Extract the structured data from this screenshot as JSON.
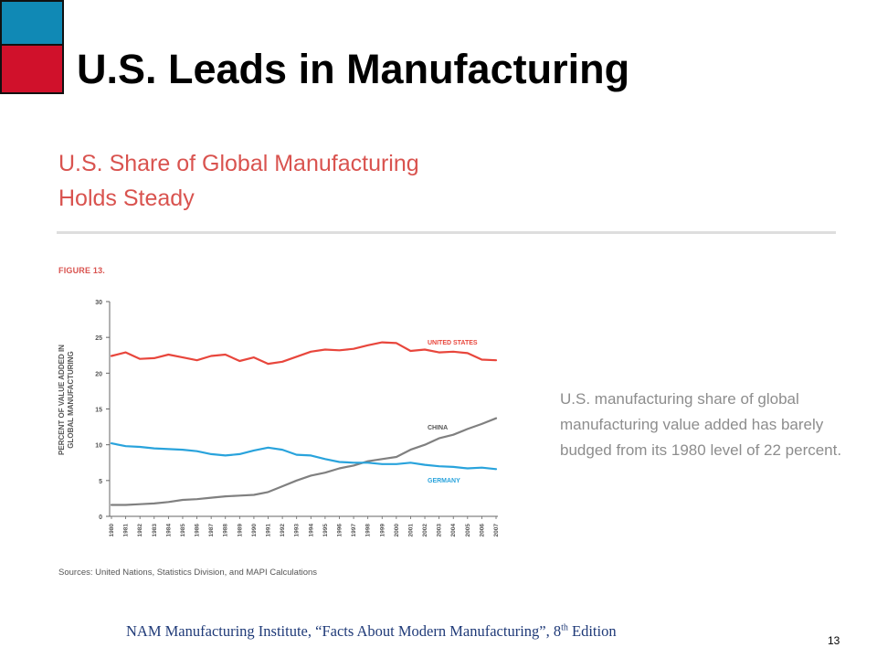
{
  "slide": {
    "title": "U.S. Leads in Manufacturing",
    "footer": "NAM Manufacturing Institute, “Facts About Modern Manufacturing”, 8",
    "footer_superscript": "th",
    "footer_suffix": " Edition",
    "page_number": "13",
    "colors": {
      "accent_blue": "#1089b5",
      "accent_red": "#d0112b",
      "footer_text": "#1f3a78"
    }
  },
  "figure": {
    "heading_line1": "U.S. Share of Global Manufacturing",
    "heading_line2": "Holds Steady",
    "label": "FIGURE 13.",
    "caption": "U.S. manufacturing share of global manufacturing value added has barely budged from its 1980 level of 22 percent.",
    "sources": "Sources: United Nations, Statistics Division, and MAPI Calculations",
    "heading_color": "#d9534f"
  },
  "chart_data": {
    "type": "line",
    "ylabel_line1": "PERCENT OF VALUE ADDED IN",
    "ylabel_line2": "GLOBAL MANUFACTURING",
    "xlabel": "",
    "ylim": [
      0,
      30
    ],
    "yticks": [
      0,
      5,
      10,
      15,
      20,
      25,
      30
    ],
    "x": [
      "1980",
      "1981",
      "1982",
      "1983",
      "1984",
      "1985",
      "1986",
      "1987",
      "1988",
      "1989",
      "1990",
      "1991",
      "1992",
      "1993",
      "1994",
      "1995",
      "1996",
      "1997",
      "1998",
      "1999",
      "2000",
      "2001",
      "2002",
      "2003",
      "2004",
      "2005",
      "2006",
      "2007"
    ],
    "grid": false,
    "series": [
      {
        "name": "UNITED STATES",
        "color": "#e8463c",
        "values": [
          22.4,
          22.9,
          22.0,
          22.1,
          22.6,
          22.2,
          21.8,
          22.4,
          22.6,
          21.7,
          22.2,
          21.3,
          21.6,
          22.3,
          23.0,
          23.3,
          23.2,
          23.4,
          23.9,
          24.3,
          24.2,
          23.1,
          23.3,
          22.9,
          23.0,
          22.8,
          21.9,
          21.8
        ]
      },
      {
        "name": "CHINA",
        "color": "#808080",
        "values": [
          1.6,
          1.6,
          1.7,
          1.8,
          2.0,
          2.3,
          2.4,
          2.6,
          2.8,
          2.9,
          3.0,
          3.4,
          4.2,
          5.0,
          5.7,
          6.1,
          6.7,
          7.1,
          7.7,
          8.0,
          8.3,
          9.3,
          10.0,
          10.9,
          11.4,
          12.2,
          12.9,
          13.7
        ]
      },
      {
        "name": "GERMANY",
        "color": "#29a3dc",
        "values": [
          10.2,
          9.8,
          9.7,
          9.5,
          9.4,
          9.3,
          9.1,
          8.7,
          8.5,
          8.7,
          9.2,
          9.6,
          9.3,
          8.6,
          8.5,
          8.0,
          7.6,
          7.5,
          7.5,
          7.3,
          7.3,
          7.5,
          7.2,
          7.0,
          6.9,
          6.7,
          6.8,
          6.6
        ]
      }
    ]
  }
}
